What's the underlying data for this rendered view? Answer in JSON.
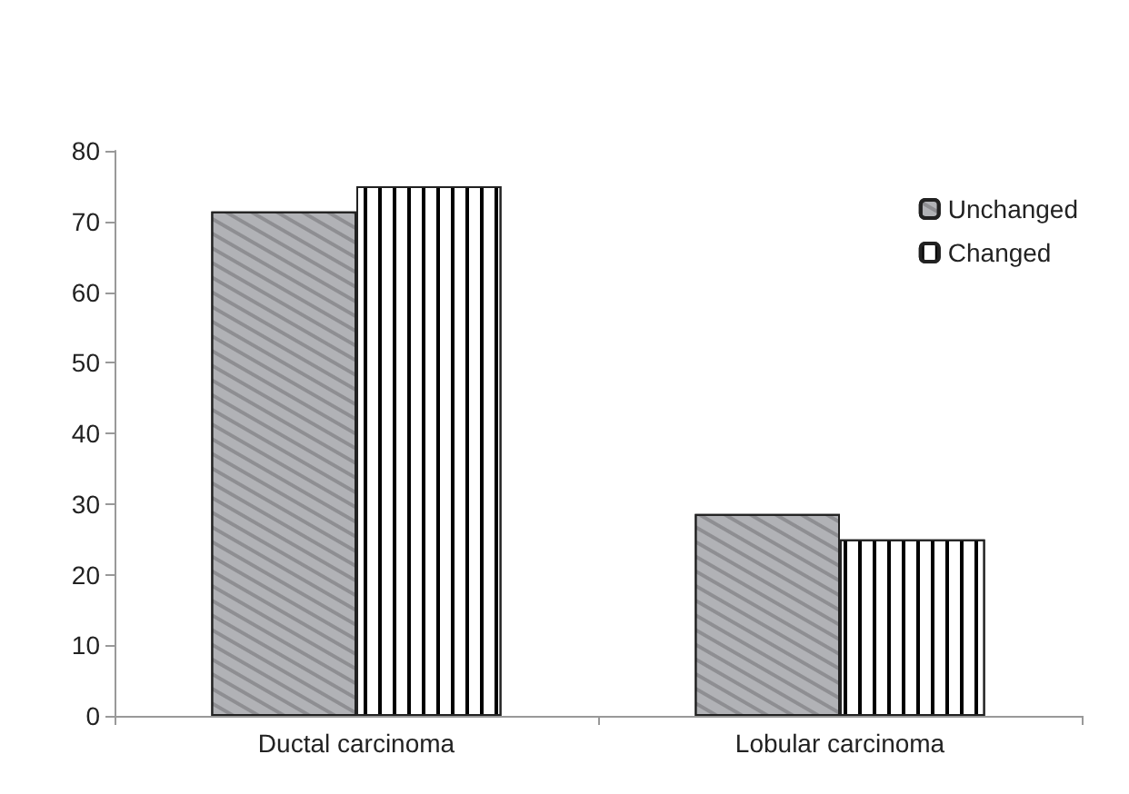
{
  "chart_data": {
    "type": "bar",
    "categories": [
      "Ductal carcinoma",
      "Lobular carcinoma"
    ],
    "series": [
      {
        "name": "Unchanged",
        "color": "#b1b2b6",
        "values": [
          71.4,
          28.6
        ]
      },
      {
        "name": "Changed",
        "color": "#ffffff",
        "values": [
          75,
          25
        ]
      }
    ],
    "ylim": [
      0,
      80
    ],
    "yticks": [
      0,
      10,
      20,
      30,
      40,
      50,
      60,
      70,
      80
    ],
    "grid": false,
    "legend": "top right"
  }
}
